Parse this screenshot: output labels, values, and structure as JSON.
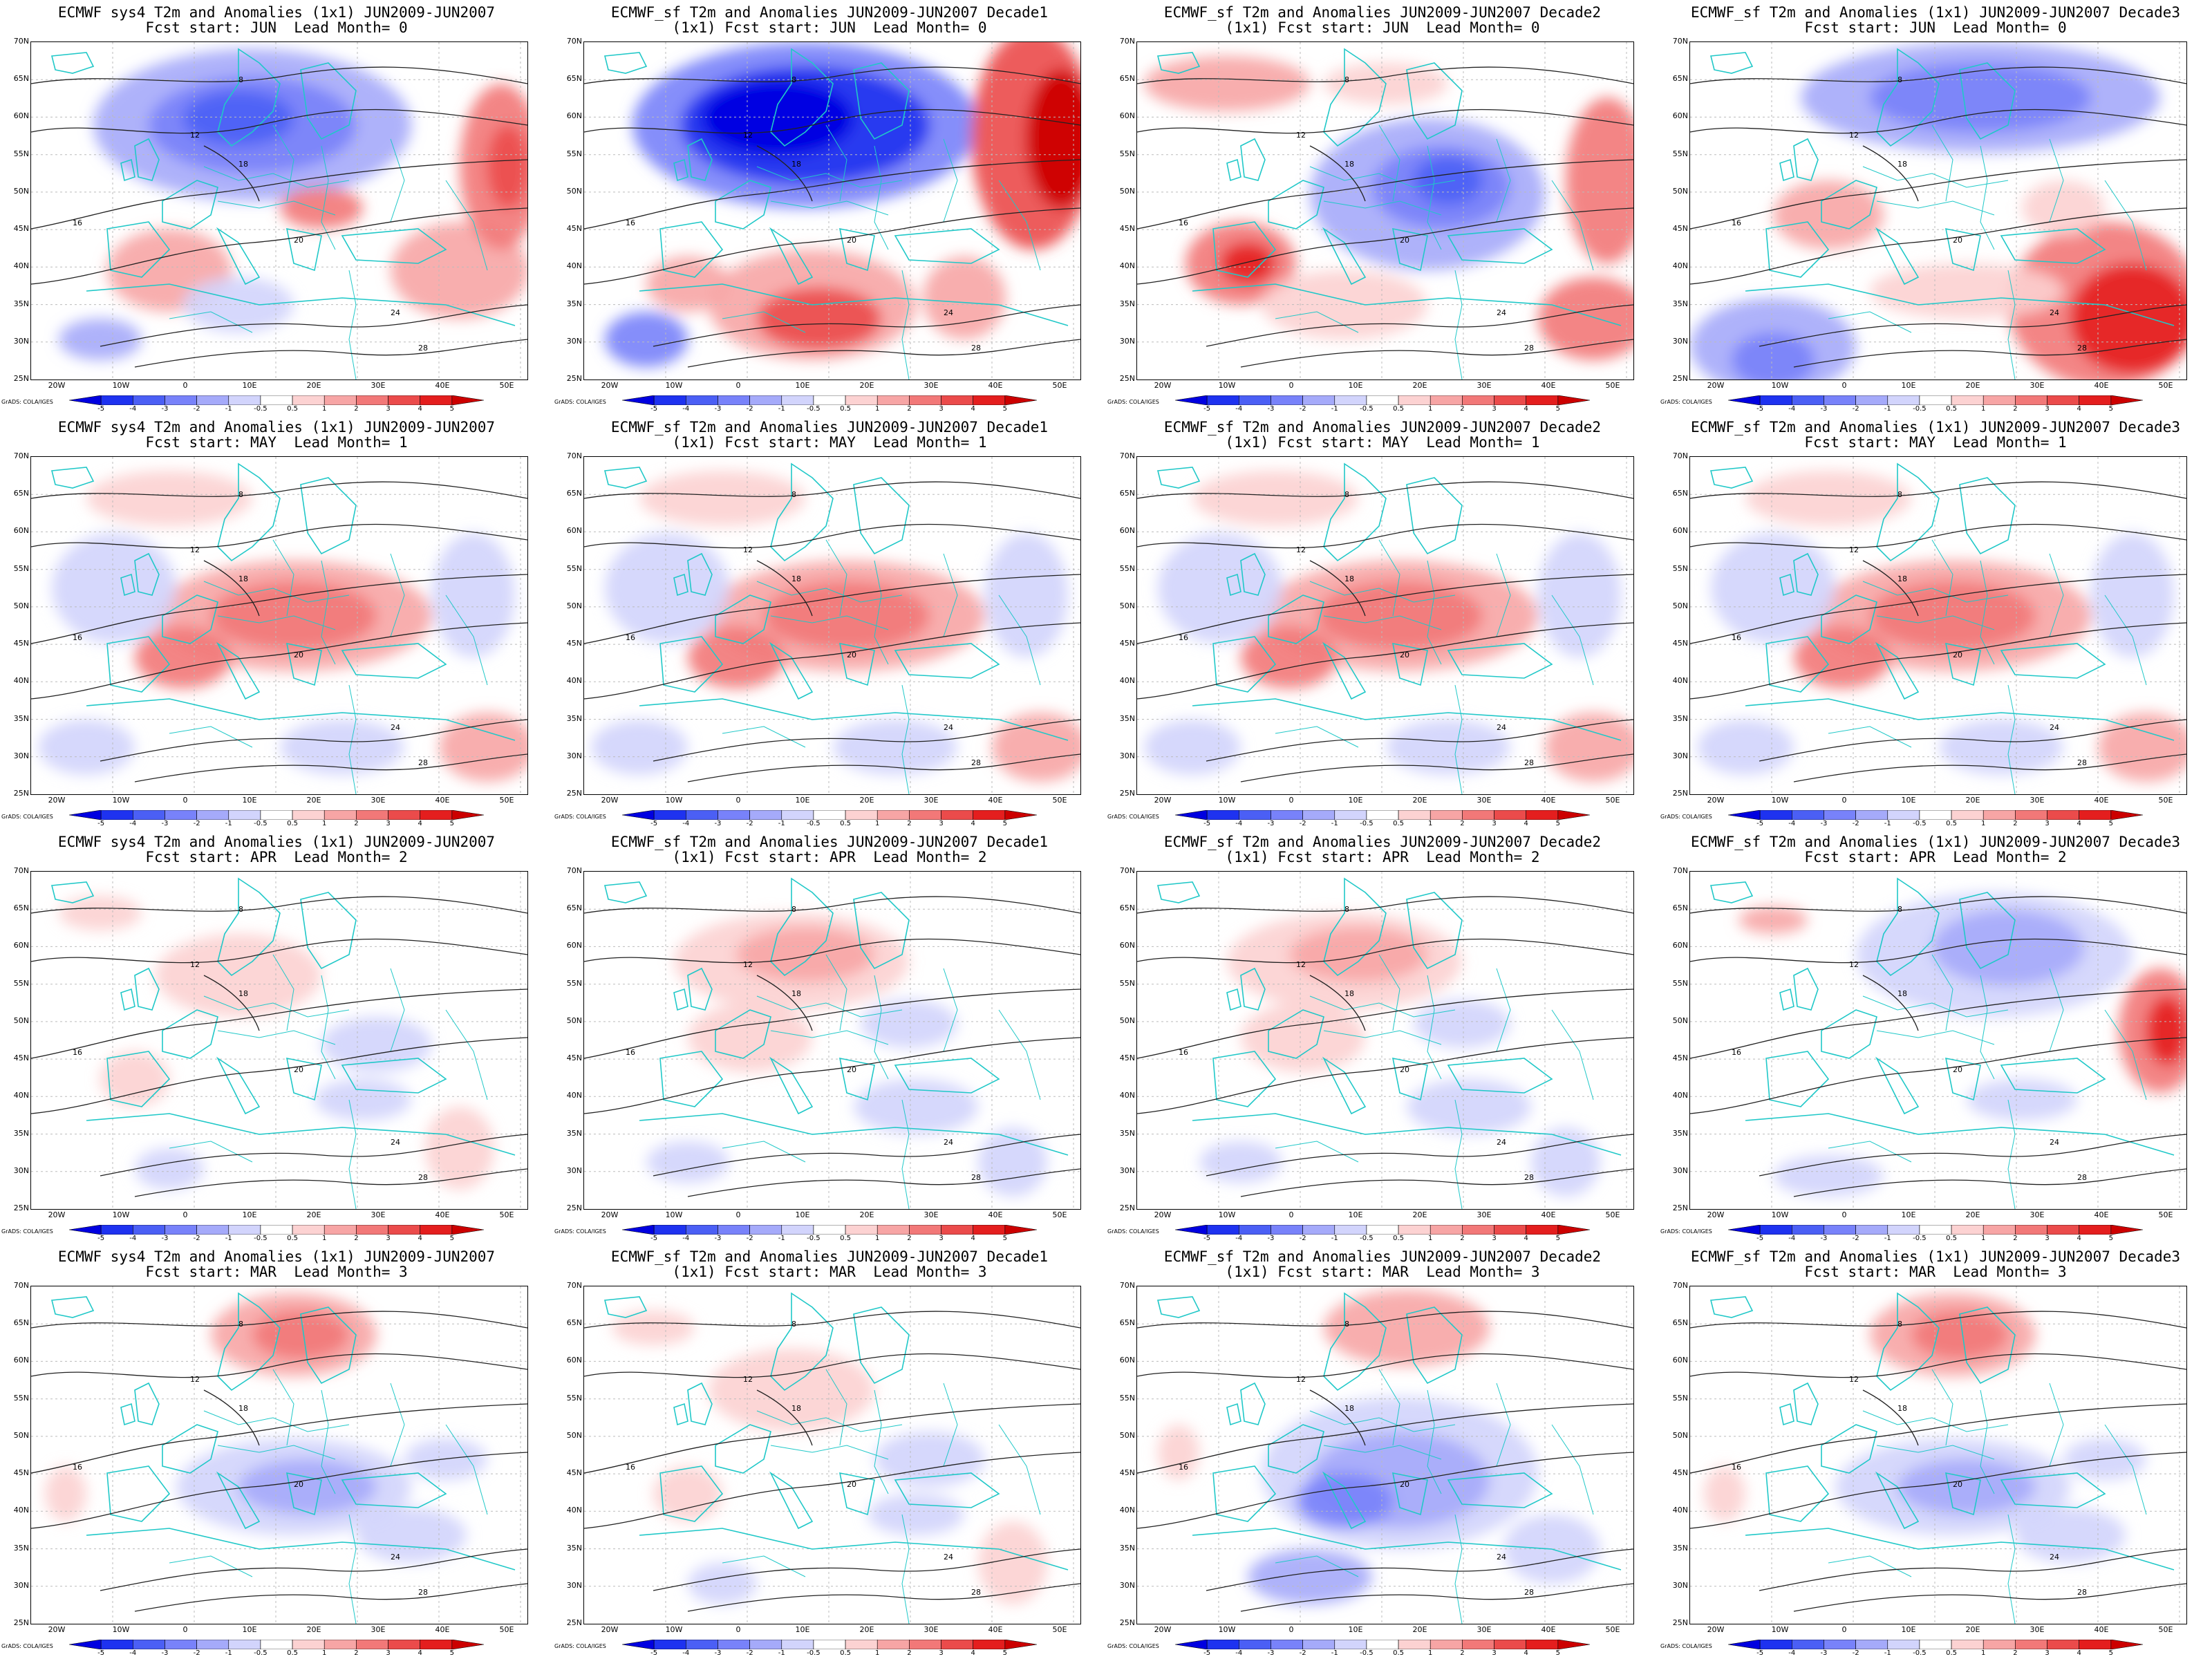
{
  "panels": [
    {
      "title1": "ECMWF sys4 T2m and Anomalies (1x1) JUN2009-JUN2007",
      "title2": "Fcst start: JUN  Lead Month= 0",
      "scheme": "blue-strong"
    },
    {
      "title1": "ECMWF_sf T2m and Anomalies JUN2009-JUN2007 Decade1",
      "title2": "(1x1) Fcst start: JUN  Lead Month= 0",
      "scheme": "blue-extreme"
    },
    {
      "title1": "ECMWF_sf T2m and Anomalies JUN2009-JUN2007 Decade2",
      "title2": "(1x1) Fcst start: JUN  Lead Month= 0",
      "scheme": "blue-mid"
    },
    {
      "title1": "ECMWF_sf T2m and Anomalies (1x1) JUN2009-JUN2007 Decade3",
      "title2": "Fcst start: JUN  Lead Month= 0",
      "scheme": "blue-north"
    },
    {
      "title1": "ECMWF sys4 T2m and Anomalies (1x1) JUN2009-JUN2007",
      "title2": "Fcst start: MAY  Lead Month= 1",
      "scheme": "red-mild"
    },
    {
      "title1": "ECMWF_sf T2m and Anomalies JUN2009-JUN2007 Decade1",
      "title2": "(1x1) Fcst start: MAY  Lead Month= 1",
      "scheme": "red-mild"
    },
    {
      "title1": "ECMWF_sf T2m and Anomalies JUN2009-JUN2007 Decade2",
      "title2": "(1x1) Fcst start: MAY  Lead Month= 1",
      "scheme": "red-mild"
    },
    {
      "title1": "ECMWF_sf T2m and Anomalies (1x1) JUN2009-JUN2007 Decade3",
      "title2": "Fcst start: MAY  Lead Month= 1",
      "scheme": "red-mild"
    },
    {
      "title1": "ECMWF sys4 T2m and Anomalies (1x1) JUN2009-JUN2007",
      "title2": "Fcst start: APR  Lead Month= 2",
      "scheme": "weak"
    },
    {
      "title1": "ECMWF_sf T2m and Anomalies JUN2009-JUN2007 Decade1",
      "title2": "(1x1) Fcst start: APR  Lead Month= 2",
      "scheme": "weak-red"
    },
    {
      "title1": "ECMWF_sf T2m and Anomalies JUN2009-JUN2007 Decade2",
      "title2": "(1x1) Fcst start: APR  Lead Month= 2",
      "scheme": "weak-red"
    },
    {
      "title1": "ECMWF_sf T2m and Anomalies (1x1) JUN2009-JUN2007 Decade3",
      "title2": "Fcst start: APR  Lead Month= 2",
      "scheme": "blue-north-red-east"
    },
    {
      "title1": "ECMWF sys4 T2m and Anomalies (1x1) JUN2009-JUN2007",
      "title2": "Fcst start: MAR  Lead Month= 3",
      "scheme": "north-red"
    },
    {
      "title1": "ECMWF_sf T2m and Anomalies JUN2009-JUN2007 Decade1",
      "title2": "(1x1) Fcst start: MAR  Lead Month= 3",
      "scheme": "weak"
    },
    {
      "title1": "ECMWF_sf T2m and Anomalies JUN2009-JUN2007 Decade2",
      "title2": "(1x1) Fcst start: MAR  Lead Month= 3",
      "scheme": "north-red-blue-south"
    },
    {
      "title1": "ECMWF_sf T2m and Anomalies (1x1) JUN2009-JUN2007 Decade3",
      "title2": "Fcst start: MAR  Lead Month= 3",
      "scheme": "north-red"
    }
  ],
  "lat_labels": [
    "70N",
    "65N",
    "60N",
    "55N",
    "50N",
    "45N",
    "40N",
    "35N",
    "30N",
    "25N"
  ],
  "lon_labels": [
    "20W",
    "10W",
    "0",
    "10E",
    "20E",
    "30E",
    "40E",
    "50E"
  ],
  "colorbar_labels": [
    "-5",
    "-4",
    "-3",
    "-2",
    "-1",
    "-0.5",
    "0.5",
    "1",
    "2",
    "3",
    "4",
    "5"
  ],
  "colorbar_colors": [
    "#0000e0",
    "#1e32f0",
    "#4b5ff5",
    "#7882fa",
    "#a5aafa",
    "#d2d4fc",
    "#ffffff",
    "#fcd2d2",
    "#f7a5a5",
    "#f27878",
    "#eb4b4b",
    "#e41e1e",
    "#cc0000"
  ],
  "credit": "GrADS: COLA/IGES",
  "contour_labels": [
    "8",
    "12",
    "16",
    "18",
    "20",
    "24",
    "28"
  ]
}
